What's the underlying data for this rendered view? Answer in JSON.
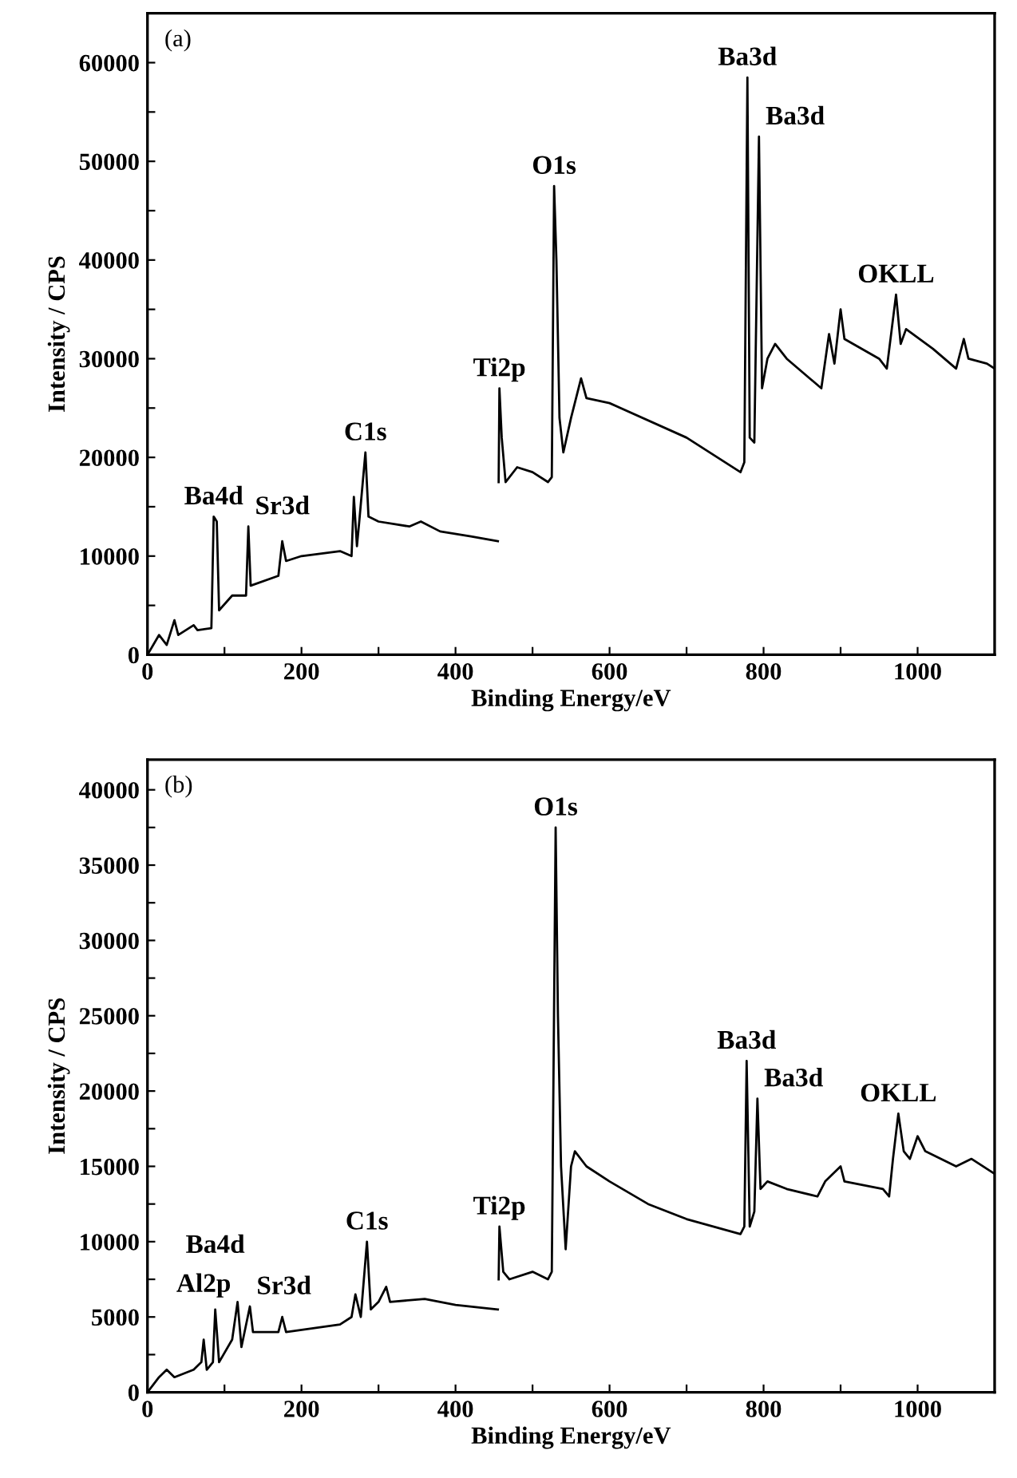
{
  "chart_data": [
    {
      "type": "line",
      "xlabel": "Binding Energy/eV",
      "ylabel": "Intensity / CPS",
      "xlim": [
        0,
        1100
      ],
      "ylim": [
        0,
        65000
      ],
      "xticks": [
        0,
        {
          "value": 100,
          "label": null
        },
        200,
        {
          "value": 300,
          "label": null
        },
        400,
        {
          "value": 500,
          "label": null
        },
        600,
        {
          "value": 700,
          "label": null
        },
        800,
        {
          "value": 900,
          "label": null
        },
        1000
      ],
      "yticks": [
        0,
        {
          "value": 5000,
          "label": null
        },
        10000,
        {
          "value": 15000,
          "label": null
        },
        20000,
        {
          "value": 25000,
          "label": null
        },
        30000,
        {
          "value": 35000,
          "label": null
        },
        40000,
        {
          "value": 45000,
          "label": null
        },
        50000,
        {
          "value": 55000,
          "label": null
        },
        60000
      ],
      "grid": false,
      "legend": false,
      "marker": "none",
      "line_style": "solid",
      "series": [
        {
          "color": "#000000",
          "x": [
            0,
            15,
            25,
            35,
            40,
            60,
            65,
            83,
            86,
            90,
            93,
            110,
            128,
            131,
            134,
            170,
            175,
            180,
            200,
            250,
            265,
            268,
            272,
            275,
            283,
            287,
            300,
            340,
            355,
            380,
            420,
            455,
            455.5,
            456,
            457,
            460,
            465,
            480,
            500,
            520,
            525,
            528,
            531,
            535,
            540,
            550,
            563,
            570,
            600,
            700,
            770,
            775,
            779,
            782,
            788,
            794,
            798,
            805,
            815,
            830,
            860,
            875,
            885,
            892,
            900,
            905,
            950,
            960,
            972,
            978,
            985,
            1020,
            1050,
            1060,
            1066,
            1090,
            1100
          ],
          "values": [
            0,
            2000,
            1000,
            3500,
            2000,
            3000,
            2500,
            2700,
            14000,
            13500,
            4500,
            6000,
            6000,
            13000,
            7000,
            8000,
            11500,
            9500,
            10000,
            10500,
            10000,
            16000,
            11000,
            13500,
            20500,
            14000,
            13500,
            13000,
            13500,
            12500,
            12000,
            11500,
            null,
            17500,
            27000,
            22000,
            17500,
            19000,
            18500,
            17500,
            18000,
            47500,
            40000,
            24000,
            20500,
            24000,
            28000,
            26000,
            25500,
            22000,
            18500,
            19500,
            58500,
            22000,
            21500,
            52500,
            27000,
            30000,
            31500,
            30000,
            28000,
            27000,
            32500,
            29500,
            35000,
            32000,
            30000,
            29000,
            36500,
            31500,
            33000,
            31000,
            29000,
            32000,
            30000,
            29500,
            29000
          ]
        }
      ],
      "annotations": [
        "(a)",
        {
          "text": "Ba4d",
          "x": 86,
          "y": 14000
        },
        {
          "text": "Sr3d",
          "x": 131,
          "y": 13000
        },
        {
          "text": "C1s",
          "x": 283,
          "y": 20500
        },
        {
          "text": "Ti2p",
          "x": 457,
          "y": 27000
        },
        {
          "text": "O1s",
          "x": 528,
          "y": 47500
        },
        {
          "text": "Ba3d",
          "x": 779,
          "y": 58500
        },
        {
          "text": "Ba3d",
          "x": 794,
          "y": 52500
        },
        {
          "text": "OKLL",
          "x": 972,
          "y": 36500
        }
      ]
    },
    {
      "type": "line",
      "xlabel": "Binding Energy/eV",
      "ylabel": "Intensity / CPS",
      "xlim": [
        0,
        1100
      ],
      "ylim": [
        0,
        42000
      ],
      "xticks": [
        0,
        {
          "value": 100,
          "label": null
        },
        200,
        {
          "value": 300,
          "label": null
        },
        400,
        {
          "value": 500,
          "label": null
        },
        600,
        {
          "value": 700,
          "label": null
        },
        800,
        {
          "value": 900,
          "label": null
        },
        1000
      ],
      "yticks": [
        0,
        {
          "value": 2500,
          "label": null
        },
        5000,
        {
          "value": 7500,
          "label": null
        },
        10000,
        {
          "value": 12500,
          "label": null
        },
        15000,
        {
          "value": 17500,
          "label": null
        },
        20000,
        {
          "value": 22500,
          "label": null
        },
        25000,
        {
          "value": 27500,
          "label": null
        },
        30000,
        {
          "value": 32500,
          "label": null
        },
        35000,
        {
          "value": 37500,
          "label": null
        },
        40000
      ],
      "grid": false,
      "legend": false,
      "marker": "none",
      "line_style": "solid",
      "series": [
        {
          "color": "#000000",
          "x": [
            0,
            15,
            25,
            35,
            60,
            70,
            73,
            77,
            85,
            88,
            93,
            110,
            117,
            122,
            133,
            137,
            170,
            175,
            180,
            250,
            265,
            270,
            277,
            285,
            290,
            300,
            310,
            315,
            360,
            400,
            455,
            455.5,
            456,
            457,
            462,
            470,
            500,
            520,
            525,
            530,
            533,
            537,
            543,
            550,
            555,
            570,
            600,
            650,
            700,
            770,
            775,
            778,
            782,
            788,
            792,
            796,
            805,
            830,
            870,
            880,
            900,
            905,
            955,
            963,
            968,
            975,
            982,
            990,
            1000,
            1010,
            1050,
            1070,
            1100
          ],
          "values": [
            0,
            1000,
            1500,
            1000,
            1500,
            2000,
            3500,
            1500,
            2000,
            5500,
            2000,
            3500,
            6000,
            3000,
            5700,
            4000,
            4000,
            5000,
            4000,
            4500,
            5000,
            6500,
            5000,
            10000,
            5500,
            6000,
            7000,
            6000,
            6200,
            5800,
            5500,
            null,
            7500,
            11000,
            8000,
            7500,
            8000,
            7500,
            8000,
            37500,
            25000,
            15000,
            9500,
            15000,
            16000,
            15000,
            14000,
            12500,
            11500,
            10500,
            11000,
            22000,
            11000,
            12000,
            19500,
            13500,
            14000,
            13500,
            13000,
            14000,
            15000,
            14000,
            13500,
            13000,
            15500,
            18500,
            16000,
            15500,
            17000,
            16000,
            15000,
            15500,
            14500
          ]
        }
      ],
      "annotations": [
        "(b)",
        {
          "text": "Al2p",
          "x": 73,
          "y": 3500
        },
        {
          "text": "Ba4d",
          "x": 88,
          "y": 5500
        },
        {
          "text": "Sr3d",
          "x": 133,
          "y": 5700
        },
        {
          "text": "C1s",
          "x": 285,
          "y": 10000
        },
        {
          "text": "Ti2p",
          "x": 457,
          "y": 11000
        },
        {
          "text": "O1s",
          "x": 530,
          "y": 37500
        },
        {
          "text": "Ba3d",
          "x": 778,
          "y": 22000
        },
        {
          "text": "Ba3d",
          "x": 792,
          "y": 19500
        },
        {
          "text": "OKLL",
          "x": 975,
          "y": 18500
        }
      ]
    }
  ]
}
